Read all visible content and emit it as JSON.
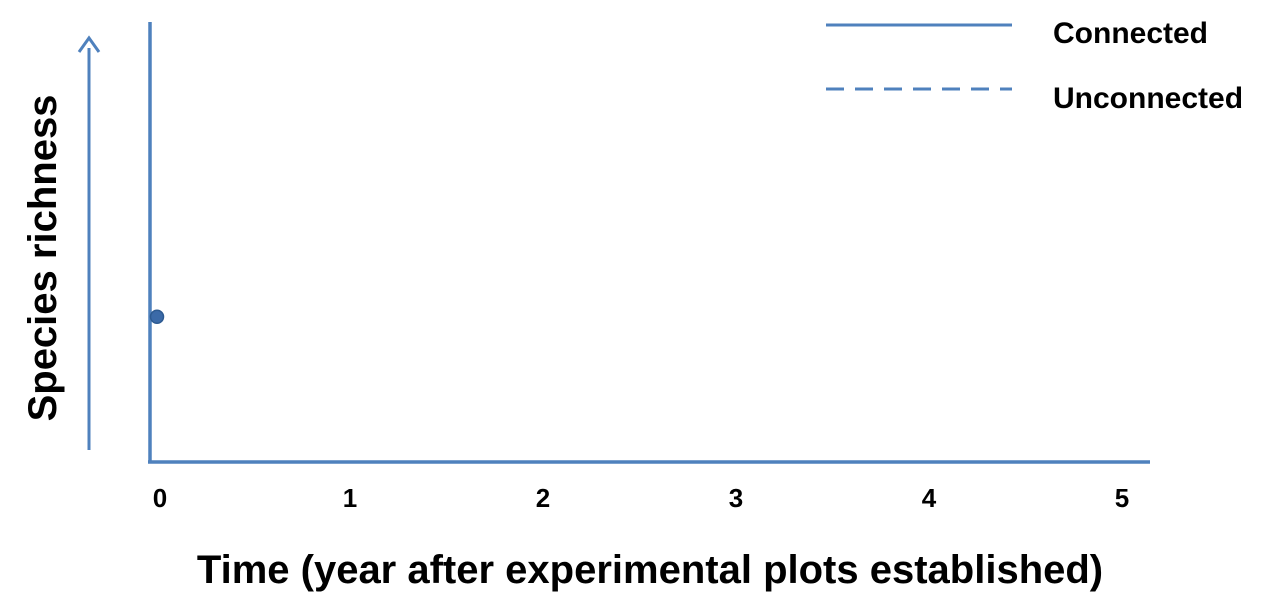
{
  "chart_data": {
    "type": "line",
    "xlabel": "Time (year after experimental plots established)",
    "ylabel": "Species richness",
    "x_ticks": [
      "0",
      "1",
      "2",
      "3",
      "4",
      "5"
    ],
    "xlim": [
      0,
      5
    ],
    "ylim": [
      0,
      1
    ],
    "y_axis_arrow": true,
    "y_tick_labels": false,
    "grid": false,
    "legend_position": "top-right",
    "line_color": "#4f81bd",
    "point_color": "#3b6aa8",
    "series": [
      {
        "name": "Connected",
        "line_style": "solid",
        "points": [
          {
            "x": 0,
            "y": 0.33
          }
        ]
      },
      {
        "name": "Unconnected",
        "line_style": "dashed",
        "points": []
      }
    ]
  }
}
